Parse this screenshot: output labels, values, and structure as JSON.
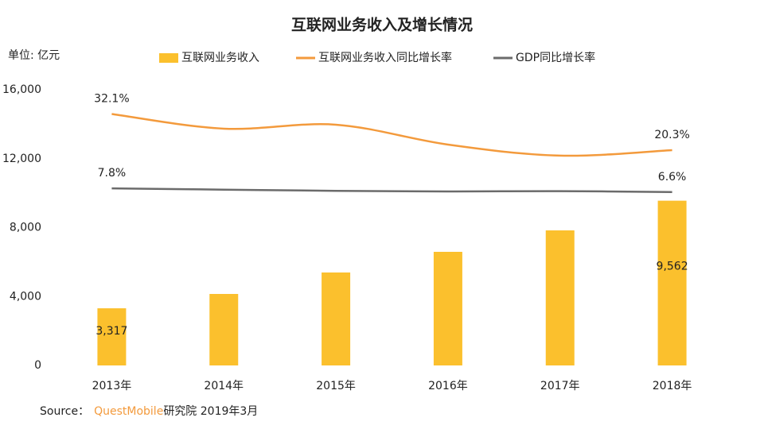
{
  "chart_data": {
    "type": "bar-line",
    "title": "互联网业务收入及增长情况",
    "unit_label": "单位: 亿元",
    "categories": [
      "2013年",
      "2014年",
      "2015年",
      "2016年",
      "2017年",
      "2018年"
    ],
    "series": [
      {
        "name": "互联网业务收入",
        "color": "#fbc02d",
        "values": [
          3317,
          4150,
          5395,
          6594,
          7839,
          9562
        ],
        "value_labels": [
          "3,317",
          null,
          null,
          null,
          null,
          "9,562"
        ]
      },
      {
        "name": "互联网业务收入同比增长率",
        "color": "#f39a3c",
        "axis": "y2",
        "values": [
          32.1,
          27.3,
          28.6,
          22.1,
          18.5,
          20.3
        ],
        "value_labels": [
          "32.1%",
          null,
          null,
          null,
          null,
          "20.3%"
        ]
      },
      {
        "name": "GDP同比增长率",
        "color": "#6b6b6b",
        "axis": "y2",
        "values": [
          7.8,
          7.4,
          7.0,
          6.8,
          6.9,
          6.6
        ],
        "value_labels": [
          "7.8%",
          null,
          null,
          null,
          null,
          "6.6%"
        ]
      }
    ],
    "ylim": [
      0,
      16000
    ],
    "yticks": [
      0,
      {
        "value": 4000,
        "label": "4,000"
      },
      {
        "value": 8000,
        "label": "8,000"
      },
      {
        "value": 12000,
        "label": "12,000"
      },
      {
        "value": 16000,
        "label": "16,000"
      }
    ],
    "y2lim": [
      -50,
      40
    ],
    "grid": false,
    "source": {
      "prefix": "Source：",
      "brand": "QuestMobile",
      "suffix": "研究院 2019年3月"
    }
  }
}
